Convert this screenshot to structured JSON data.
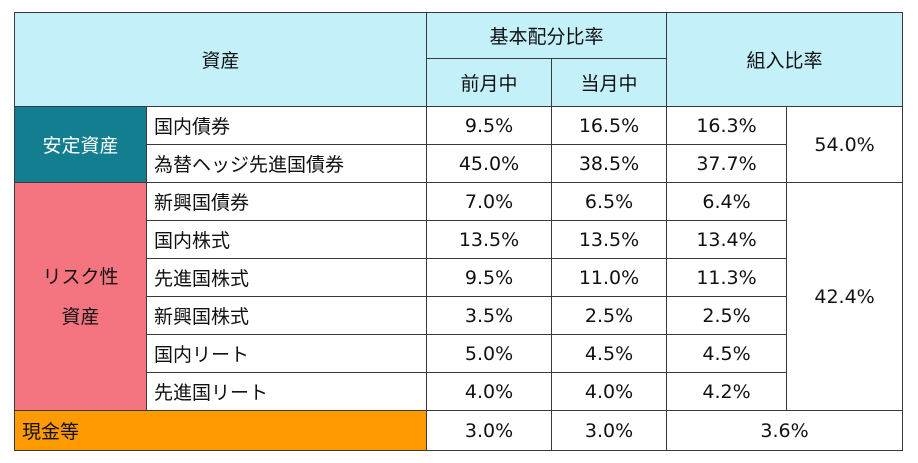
{
  "headers": {
    "asset": "資産",
    "base_allocation": "基本配分比率",
    "prev_month": "前月中",
    "this_month": "当月中",
    "allocation_ratio": "組入比率"
  },
  "categories": {
    "stable": "安定資産",
    "risk_line1": "リスク性",
    "risk_line2": "資産",
    "cash": "現金等"
  },
  "rows": [
    {
      "name": "国内債券",
      "prev": "9.5%",
      "curr": "16.5%",
      "ratio": "16.3%"
    },
    {
      "name": "為替ヘッジ先進国債券",
      "prev": "45.0%",
      "curr": "38.5%",
      "ratio": "37.7%"
    },
    {
      "name": "新興国債券",
      "prev": "7.0%",
      "curr": "6.5%",
      "ratio": "6.4%"
    },
    {
      "name": "国内株式",
      "prev": "13.5%",
      "curr": "13.5%",
      "ratio": "13.4%"
    },
    {
      "name": "先進国株式",
      "prev": "9.5%",
      "curr": "11.0%",
      "ratio": "11.3%"
    },
    {
      "name": "新興国株式",
      "prev": "3.5%",
      "curr": "2.5%",
      "ratio": "2.5%"
    },
    {
      "name": "国内リート",
      "prev": "5.0%",
      "curr": "4.5%",
      "ratio": "4.5%"
    },
    {
      "name": "先進国リート",
      "prev": "4.0%",
      "curr": "4.0%",
      "ratio": "4.2%"
    }
  ],
  "subtotals": {
    "stable": "54.0%",
    "risk": "42.4%"
  },
  "cash_row": {
    "prev": "3.0%",
    "curr": "3.0%",
    "ratio": "3.6%"
  }
}
